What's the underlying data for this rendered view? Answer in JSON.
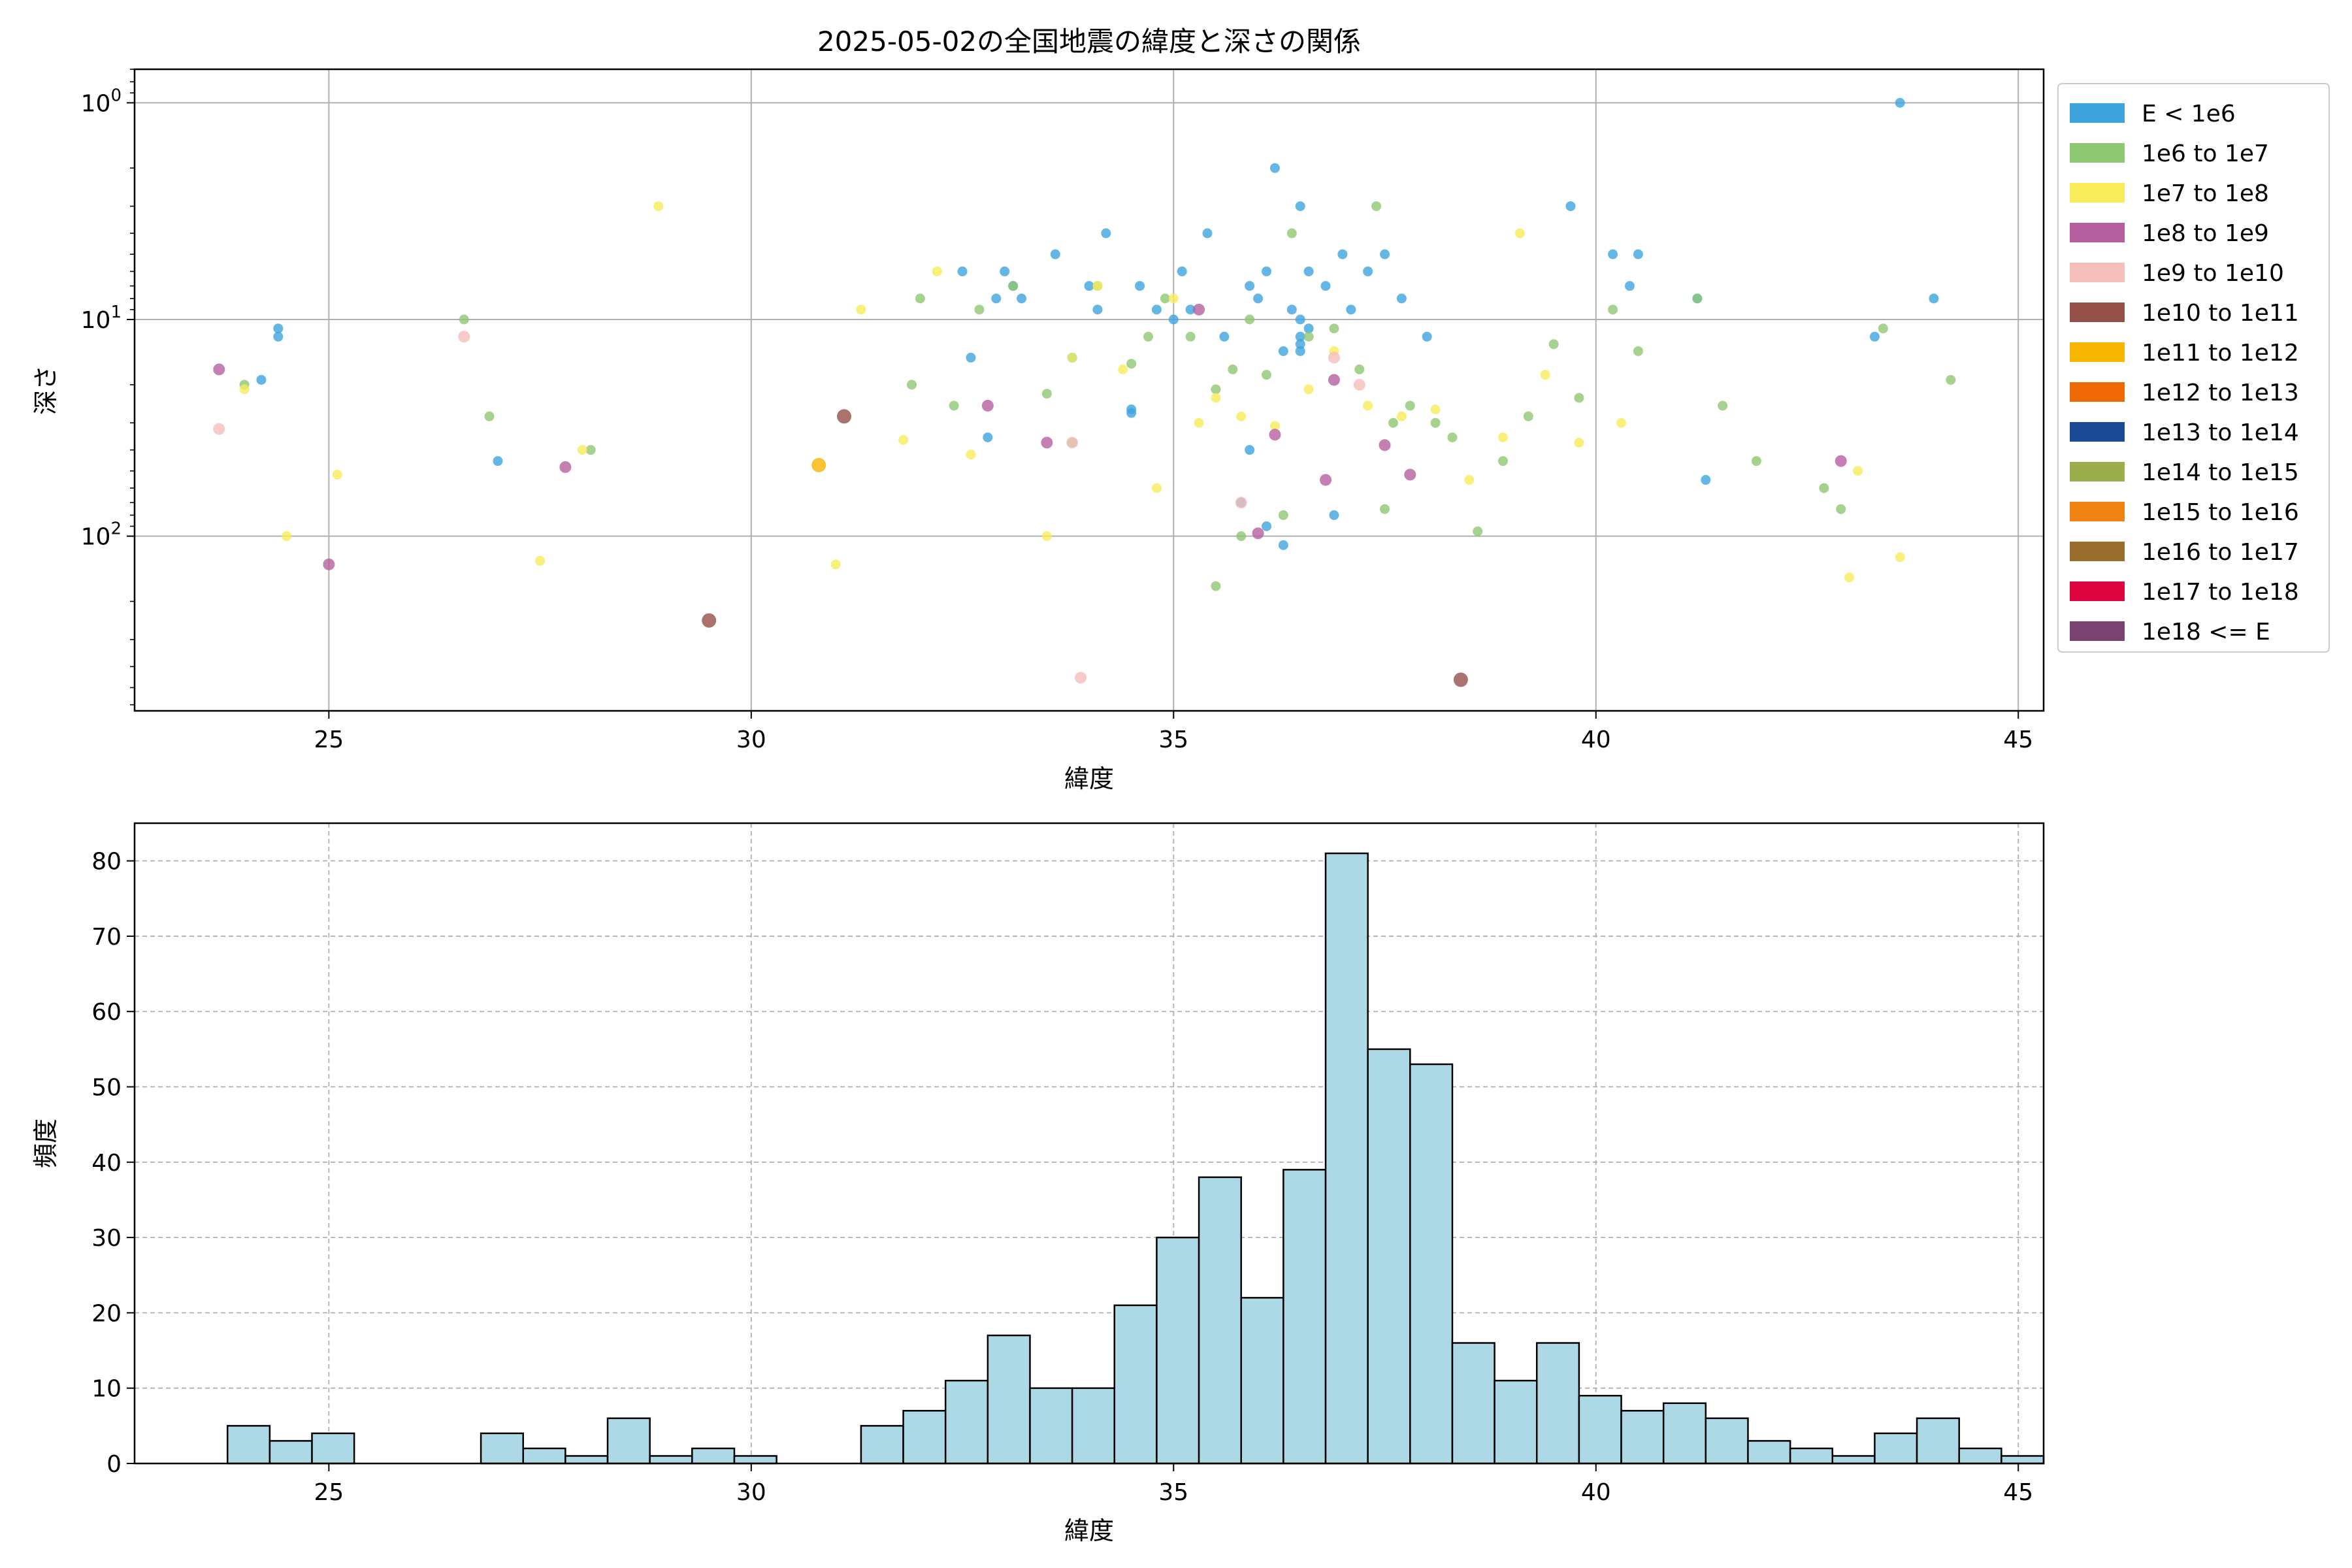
{
  "figure": {
    "title": "2025-05-02の全国地震の緯度と深さの関係"
  },
  "chart_data": [
    {
      "type": "scatter",
      "title": "2025-05-02の全国地震の緯度と深さの関係",
      "xlabel": "緯度",
      "ylabel": "深さ",
      "y_scale": "log",
      "y_inverted": true,
      "xlim": [
        22.7,
        45.3
      ],
      "ylim_depth": [
        0.7,
        640
      ],
      "x_ticks": [
        25,
        30,
        35,
        40,
        45
      ],
      "y_ticks": [
        {
          "value": 1,
          "exp": "0"
        },
        {
          "value": 10,
          "exp": "1"
        },
        {
          "value": 100,
          "exp": "2"
        }
      ],
      "grid": true,
      "legend_placement": "outside-right",
      "legend": [
        {
          "label": "E < 1e6",
          "color": "#3DA4DD"
        },
        {
          "label": "1e6 to 1e7",
          "color": "#8FC873"
        },
        {
          "label": "1e7 to 1e8",
          "color": "#F8EC5B"
        },
        {
          "label": "1e8 to 1e9",
          "color": "#B55FA0"
        },
        {
          "label": "1e9 to 1e10",
          "color": "#F4BEBA"
        },
        {
          "label": "1e10 to 1e11",
          "color": "#955049"
        },
        {
          "label": "1e11 to 1e12",
          "color": "#F7B500"
        },
        {
          "label": "1e12 to 1e13",
          "color": "#EE6807"
        },
        {
          "label": "1e13 to 1e14",
          "color": "#1B4A94"
        },
        {
          "label": "1e14 to 1e15",
          "color": "#9CAD4C"
        },
        {
          "label": "1e15 to 1e16",
          "color": "#F0820F"
        },
        {
          "label": "1e16 to 1e17",
          "color": "#986C2A"
        },
        {
          "label": "1e17 to 1e18",
          "color": "#DC0540"
        },
        {
          "label": "1e18 <= E",
          "color": "#7A426F"
        }
      ],
      "series": [
        {
          "class": 0,
          "points": [
            [
              24.4,
              11
            ],
            [
              24.4,
              12
            ],
            [
              24.2,
              19
            ],
            [
              27,
              45
            ],
            [
              32.5,
              6
            ],
            [
              32.6,
              15
            ],
            [
              32.9,
              8
            ],
            [
              33,
              6
            ],
            [
              33.1,
              7
            ],
            [
              33.2,
              8
            ],
            [
              33.6,
              5
            ],
            [
              33.8,
              15
            ],
            [
              34,
              7
            ],
            [
              34.1,
              9
            ],
            [
              34.2,
              4
            ],
            [
              34.5,
              26
            ],
            [
              34.6,
              7
            ],
            [
              34.8,
              9
            ],
            [
              35,
              10
            ],
            [
              35.1,
              6
            ],
            [
              35.2,
              9
            ],
            [
              35.4,
              4
            ],
            [
              35.6,
              12
            ],
            [
              35.9,
              7
            ],
            [
              36,
              8
            ],
            [
              36.1,
              6
            ],
            [
              36.2,
              2
            ],
            [
              36.3,
              14
            ],
            [
              36.5,
              3
            ],
            [
              36.5,
              10
            ],
            [
              36.6,
              6
            ],
            [
              36.8,
              7
            ],
            [
              37,
              5
            ],
            [
              37.1,
              9
            ],
            [
              37.3,
              6
            ],
            [
              37.5,
              5
            ],
            [
              37.7,
              8
            ],
            [
              38,
              12
            ],
            [
              35.8,
              70
            ],
            [
              36.1,
              90
            ],
            [
              36.3,
              110
            ],
            [
              36.9,
              80
            ],
            [
              39.7,
              3
            ],
            [
              40.2,
              5
            ],
            [
              40.4,
              7
            ],
            [
              40.5,
              5
            ],
            [
              41.2,
              8
            ],
            [
              41.3,
              55
            ],
            [
              43.3,
              12
            ],
            [
              43.6,
              1
            ],
            [
              44,
              8
            ],
            [
              32.8,
              35
            ],
            [
              34.5,
              27
            ],
            [
              35.9,
              40
            ],
            [
              36.5,
              12
            ],
            [
              36.5,
              13
            ],
            [
              36.5,
              14
            ],
            [
              36.6,
              11
            ],
            [
              36.4,
              9
            ]
          ]
        },
        {
          "class": 1,
          "points": [
            [
              24,
              20
            ],
            [
              26.6,
              10
            ],
            [
              26.9,
              28
            ],
            [
              28.1,
              40
            ],
            [
              31.9,
              20
            ],
            [
              32,
              8
            ],
            [
              32.4,
              25
            ],
            [
              32.7,
              9
            ],
            [
              33.1,
              7
            ],
            [
              33.5,
              22
            ],
            [
              33.8,
              37
            ],
            [
              34.1,
              7
            ],
            [
              34.5,
              16
            ],
            [
              34.7,
              12
            ],
            [
              34.9,
              8
            ],
            [
              35.2,
              12
            ],
            [
              35.5,
              21
            ],
            [
              35.7,
              17
            ],
            [
              35.9,
              10
            ],
            [
              36.1,
              18
            ],
            [
              36.4,
              4
            ],
            [
              36.6,
              12
            ],
            [
              36.9,
              11
            ],
            [
              37.2,
              17
            ],
            [
              37.4,
              3
            ],
            [
              37.6,
              30
            ],
            [
              37.8,
              25
            ],
            [
              38.1,
              30
            ],
            [
              38.3,
              35
            ],
            [
              38.6,
              95
            ],
            [
              38.9,
              45
            ],
            [
              39.2,
              28
            ],
            [
              39.5,
              13
            ],
            [
              39.8,
              23
            ],
            [
              40.2,
              9
            ],
            [
              40.5,
              14
            ],
            [
              41.2,
              8
            ],
            [
              41.5,
              25
            ],
            [
              41.9,
              45
            ],
            [
              42.7,
              60
            ],
            [
              42.9,
              75
            ],
            [
              43.4,
              11
            ],
            [
              44.2,
              19
            ],
            [
              35.5,
              170
            ],
            [
              35.8,
              100
            ],
            [
              36.3,
              80
            ],
            [
              37.5,
              75
            ]
          ]
        },
        {
          "class": 2,
          "points": [
            [
              24,
              21
            ],
            [
              25.1,
              52
            ],
            [
              24.5,
              100
            ],
            [
              28.9,
              3
            ],
            [
              27.5,
              130
            ],
            [
              28,
              40
            ],
            [
              31.3,
              9
            ],
            [
              31.8,
              36
            ],
            [
              32.2,
              6
            ],
            [
              32.6,
              42
            ],
            [
              33.5,
              100
            ],
            [
              33.8,
              15
            ],
            [
              34.1,
              7
            ],
            [
              34.4,
              17
            ],
            [
              34.8,
              60
            ],
            [
              35,
              8
            ],
            [
              35.3,
              30
            ],
            [
              35.5,
              23
            ],
            [
              35.8,
              28
            ],
            [
              36.2,
              31
            ],
            [
              36.6,
              21
            ],
            [
              36.9,
              14
            ],
            [
              37.3,
              25
            ],
            [
              37.7,
              28
            ],
            [
              38.1,
              26
            ],
            [
              38.5,
              55
            ],
            [
              38.9,
              35
            ],
            [
              39.1,
              4
            ],
            [
              39.4,
              18
            ],
            [
              39.8,
              37
            ],
            [
              40.3,
              30
            ],
            [
              43,
              155
            ],
            [
              43.1,
              50
            ],
            [
              43.6,
              125
            ],
            [
              31,
              135
            ]
          ]
        },
        {
          "class": 3,
          "points": [
            [
              23.7,
              17
            ],
            [
              25,
              135
            ],
            [
              27.8,
              48
            ],
            [
              32.8,
              25
            ],
            [
              33.5,
              37
            ],
            [
              35.3,
              9
            ],
            [
              36,
              97
            ],
            [
              36.2,
              34
            ],
            [
              36.8,
              55
            ],
            [
              36.9,
              19
            ],
            [
              37.5,
              38
            ],
            [
              37.8,
              52
            ],
            [
              42.9,
              45
            ]
          ]
        },
        {
          "class": 4,
          "points": [
            [
              23.7,
              32
            ],
            [
              26.6,
              12
            ],
            [
              33.8,
              37
            ],
            [
              35.8,
              70
            ],
            [
              36.9,
              15
            ],
            [
              37.2,
              20
            ],
            [
              33.9,
              450
            ]
          ]
        },
        {
          "class": 5,
          "points": [
            [
              31.1,
              28
            ],
            [
              29.5,
              245
            ],
            [
              38.4,
              460
            ]
          ]
        },
        {
          "class": 6,
          "points": [
            [
              30.8,
              47
            ]
          ]
        }
      ]
    },
    {
      "type": "bar",
      "xlabel": "緯度",
      "ylabel": "頻度",
      "xlim": [
        22.7,
        45.3
      ],
      "ylim": [
        0,
        85
      ],
      "x_ticks": [
        25,
        30,
        35,
        40,
        45
      ],
      "y_ticks": [
        0,
        10,
        20,
        30,
        40,
        50,
        60,
        70,
        80
      ],
      "grid": true,
      "bar_color": "#ADD8E6",
      "bins_start": 23.8,
      "bin_width": 0.5,
      "values": [
        5,
        3,
        4,
        0,
        0,
        0,
        4,
        2,
        1,
        6,
        1,
        2,
        1,
        0,
        0,
        5,
        7,
        11,
        17,
        10,
        10,
        21,
        30,
        38,
        22,
        39,
        81,
        55,
        53,
        16,
        11,
        16,
        9,
        7,
        8,
        6,
        3,
        2,
        1,
        4,
        6,
        2,
        1
      ]
    }
  ]
}
